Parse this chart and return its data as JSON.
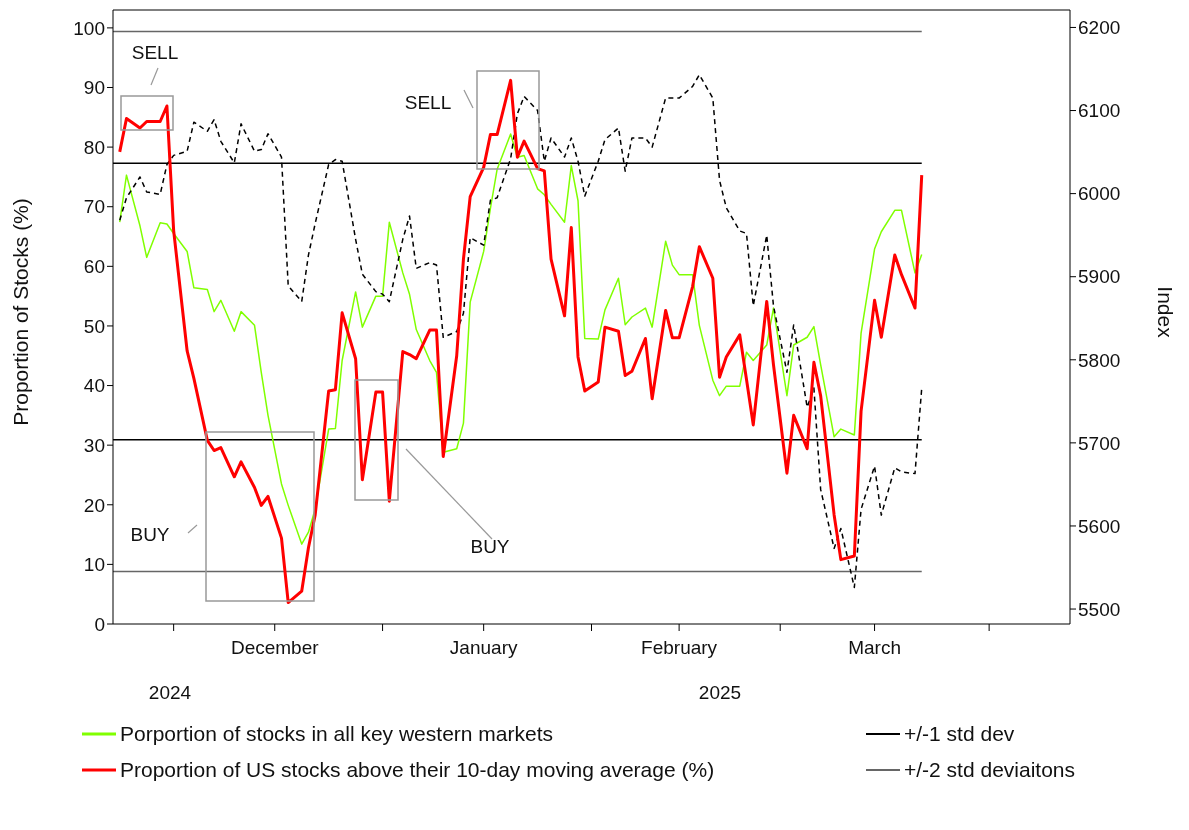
{
  "chart_data": {
    "type": "line",
    "ylabel": "Proportion of Stocks (%)",
    "y2label": "Index",
    "x": [
      "2024-11-23",
      "2024-11-24",
      "2024-11-26",
      "2024-11-27",
      "2024-11-29",
      "2024-11-30",
      "2024-12-01",
      "2024-12-03",
      "2024-12-04",
      "2024-12-06",
      "2024-12-07",
      "2024-12-08",
      "2024-12-10",
      "2024-12-11",
      "2024-12-13",
      "2024-12-14",
      "2024-12-15",
      "2024-12-17",
      "2024-12-18",
      "2024-12-20",
      "2024-12-21",
      "2024-12-22",
      "2024-12-24",
      "2024-12-25",
      "2024-12-26",
      "2024-12-28",
      "2024-12-29",
      "2024-12-31",
      "2025-01-01",
      "2025-01-02",
      "2025-01-04",
      "2025-01-05",
      "2025-01-06",
      "2025-01-08",
      "2025-01-09",
      "2025-01-10",
      "2025-01-12",
      "2025-01-13",
      "2025-01-14",
      "2025-01-16",
      "2025-01-17",
      "2025-01-18",
      "2025-01-20",
      "2025-01-21",
      "2025-01-22",
      "2025-01-24",
      "2025-01-25",
      "2025-01-26",
      "2025-01-28",
      "2025-01-29",
      "2025-01-30",
      "2025-01-31",
      "2025-02-02",
      "2025-02-03",
      "2025-02-05",
      "2025-02-06",
      "2025-02-07",
      "2025-02-09",
      "2025-02-10",
      "2025-02-12",
      "2025-02-13",
      "2025-02-14",
      "2025-02-16",
      "2025-02-17",
      "2025-02-19",
      "2025-02-20",
      "2025-02-21",
      "2025-02-23",
      "2025-02-24",
      "2025-02-25",
      "2025-02-27",
      "2025-02-28",
      "2025-03-02",
      "2025-03-03",
      "2025-03-05",
      "2025-03-06",
      "2025-03-07",
      "2025-03-09",
      "2025-03-10",
      "2025-03-12",
      "2025-03-13",
      "2025-03-15",
      "2025-03-16",
      "2025-03-18",
      "2025-03-19",
      "2025-03-21",
      "2025-03-22"
    ],
    "series": [
      {
        "name": "Porportion of stocks in all key western markets",
        "color": "#80ff00",
        "values": [
          67.4,
          75.3,
          66.8,
          61.5,
          67.3,
          67.1,
          65.5,
          62.5,
          56.4,
          56.1,
          52.4,
          54.3,
          49.1,
          52.4,
          50.1,
          42.2,
          35.0,
          23.5,
          19.9,
          13.4,
          15.4,
          19.3,
          32.7,
          32.8,
          44.2,
          55.7,
          49.8,
          55.0,
          55.0,
          67.4,
          58.9,
          55.3,
          49.4,
          44.2,
          42.2,
          28.8,
          29.4,
          33.7,
          54.0,
          62.5,
          69.7,
          76.3,
          82.2,
          78.3,
          78.6,
          73.0,
          72.0,
          70.4,
          67.4,
          76.9,
          71.0,
          47.9,
          47.8,
          52.7,
          58.0,
          50.2,
          51.5,
          53.0,
          49.8,
          64.2,
          60.2,
          58.6,
          58.6,
          50.1,
          40.9,
          38.3,
          39.9,
          39.9,
          45.6,
          44.2,
          46.8,
          53.0,
          38.3,
          46.8,
          48.1,
          49.9,
          43.5,
          31.4,
          32.7,
          31.7,
          48.8,
          62.9,
          65.8,
          69.4,
          69.4,
          58.9,
          62.0
        ]
      },
      {
        "color": "#000000",
        "axis": "y2",
        "line_style": "dashed",
        "values": [
          5968,
          5995,
          6020,
          6002,
          5999,
          6035,
          6046,
          6051,
          6086,
          6075,
          6089,
          6063,
          6037,
          6084,
          6051,
          6053,
          6072,
          6044,
          5889,
          5870,
          5926,
          5964,
          6035,
          6041,
          6039,
          5945,
          5903,
          5882,
          5879,
          5870,
          5945,
          5973,
          5910,
          5917,
          5914,
          5827,
          5834,
          5856,
          5947,
          5938,
          5992,
          5995,
          6042,
          6096,
          6117,
          6100,
          6039,
          6067,
          6044,
          6067,
          6039,
          5997,
          6039,
          6065,
          6079,
          6027,
          6067,
          6067,
          6056,
          6115,
          6115,
          6115,
          6129,
          6143,
          6115,
          6016,
          5983,
          5955,
          5952,
          5865,
          5950,
          5865,
          5785,
          5842,
          5743,
          5766,
          5644,
          5573,
          5597,
          5526,
          5620,
          5672,
          5613,
          5670,
          5665,
          5663,
          5766
        ]
      },
      {
        "name": "Proportion of US stocks above their 10-day moving average (%)",
        "color": "#ff0000",
        "values": [
          79.2,
          84.8,
          83.2,
          84.3,
          84.3,
          86.9,
          66,
          45.8,
          41.2,
          30.8,
          29.1,
          29.6,
          24.7,
          27.2,
          22.9,
          19.9,
          21.4,
          14.4,
          3.6,
          5.5,
          12.8,
          18.3,
          39.1,
          39.3,
          52.2,
          44.5,
          24.2,
          38.9,
          38.9,
          20.6,
          45.7,
          45.2,
          44.5,
          49.3,
          49.3,
          28.1,
          45,
          61.2,
          71.7,
          76.6,
          82.1,
          82.1,
          91.2,
          78.3,
          81.0,
          76.4,
          76.0,
          61.2,
          51.7,
          66.5,
          44.8,
          39.1,
          40.6,
          49.8,
          49.1,
          41.7,
          42.4,
          47.9,
          37.8,
          52.6,
          48.0,
          48.0,
          56.6,
          63.3,
          58.0,
          41.4,
          44.8,
          48.5,
          41.0,
          33.4,
          54.1,
          43.5,
          25.3,
          35.0,
          29.4,
          43.9,
          38.3,
          18.3,
          10.8,
          11.4,
          35.7,
          54.3,
          48.1,
          61.9,
          58.6,
          53.0,
          75.3
        ]
      }
    ],
    "xlim": [
      "2024-11-22",
      "2025-04-13"
    ],
    "xticks": [
      {
        "value": "2024-12-01",
        "label": null
      },
      {
        "value": "2024-12-16",
        "label": "December"
      },
      {
        "value": "2025-01-01",
        "label": null
      },
      {
        "value": "2025-01-16",
        "label": "January"
      },
      {
        "value": "2025-02-01",
        "label": null
      },
      {
        "value": "2025-02-14",
        "label": "February"
      },
      {
        "value": "2025-03-01",
        "label": null
      },
      {
        "value": "2025-03-15",
        "label": "March"
      },
      {
        "value": "2025-04-01",
        "label": null
      }
    ],
    "ylim": [
      0,
      103
    ],
    "yticks": [
      0,
      10,
      20,
      30,
      40,
      50,
      60,
      70,
      80,
      90,
      100
    ],
    "y2lim": [
      5482,
      6221
    ],
    "y2ticks": [
      5500,
      5600,
      5700,
      5800,
      5900,
      6000,
      6100,
      6200
    ],
    "ref_lines": [
      {
        "axis": "y",
        "value": 77.3,
        "label": "+/-1 std dev",
        "color": "#000000"
      },
      {
        "axis": "y",
        "value": 30.9,
        "color": "#000000"
      },
      {
        "axis": "y",
        "value": 99.4,
        "label": "+/-2 std deviaitons",
        "color": "#666666"
      },
      {
        "axis": "y",
        "value": 8.8,
        "color": "#666666"
      }
    ],
    "annotations": [
      "SELL",
      "SELL",
      "BUY",
      "BUY",
      "2024",
      "2025"
    ],
    "legend": "bottom"
  }
}
